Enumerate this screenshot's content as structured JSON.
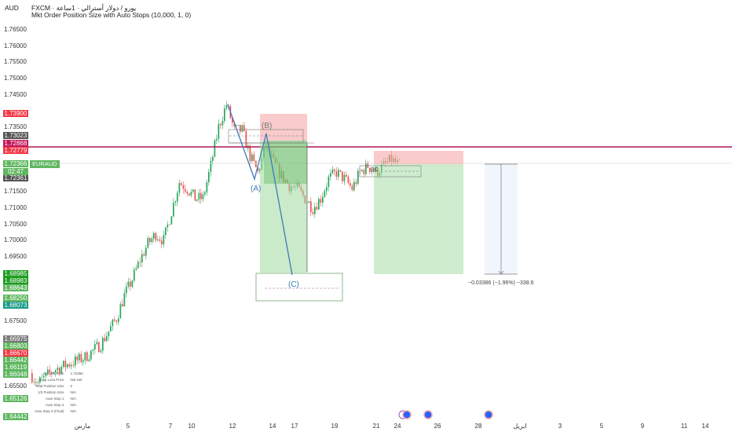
{
  "header": {
    "currency": "AUD",
    "source_line": "FXCM · يورو / دولار أسترالي · 1ساعة",
    "indicator": "Mkt Order Position Size with Auto Stops (10,000, 1, 0)"
  },
  "symbol_tag": "EURAUD",
  "countdown": "02:47",
  "y_ticks": [
    "1.76500",
    "1.76000",
    "1.75500",
    "1.75000",
    "1.74500",
    "1.73500",
    "1.71500",
    "1.71000",
    "1.70500",
    "1.70000",
    "1.69500",
    "1.67500",
    "1.65500"
  ],
  "price_labels": [
    {
      "v": "1.73900",
      "color": "#f23645"
    },
    {
      "v": "1.73023",
      "color": "#555555"
    },
    {
      "v": "1.72868",
      "color": "#c2185b"
    },
    {
      "v": "1.72779",
      "color": "#f23645"
    },
    {
      "v": "1.72366",
      "color": "#5fb760"
    },
    {
      "v": "1.72361",
      "color": "#555555"
    },
    {
      "v": "1.68985",
      "color": "#1e9c1e"
    },
    {
      "v": "1.68983",
      "color": "#1e9c1e"
    },
    {
      "v": "1.68643",
      "color": "#5fb760"
    },
    {
      "v": "1.68250",
      "color": "#5fb760"
    },
    {
      "v": "1.68073",
      "color": "#1a9a8a"
    },
    {
      "v": "1.66975",
      "color": "#7a7a7a"
    },
    {
      "v": "1.66803",
      "color": "#5fb760"
    },
    {
      "v": "1.66670",
      "color": "#f23645"
    },
    {
      "v": "1.66442",
      "color": "#5fb760"
    },
    {
      "v": "1.66119",
      "color": "#5fb760"
    },
    {
      "v": "1.66048",
      "color": "#5fb760"
    },
    {
      "v": "1.65126",
      "color": "#5fb760"
    },
    {
      "v": "1.64442",
      "color": "#5fb760"
    }
  ],
  "x_ticks": [
    "مارس",
    "5",
    "7",
    "10",
    "12",
    "14",
    "17",
    "19",
    "21",
    "24",
    "26",
    "28",
    "ابريل",
    "3",
    "5",
    "9",
    "11",
    "14"
  ],
  "info_table": [
    [
      "Current Price",
      "1.72366"
    ],
    [
      "Stop Loss Price",
      "Not Set"
    ],
    [
      "Total Position Size",
      "0"
    ],
    [
      "1/3 Position Size",
      "N/A"
    ],
    [
      "Auto Stop 1",
      "N/A"
    ],
    [
      "Auto Stop 2",
      "N/A"
    ],
    [
      "Auto Stop 3 (Final)",
      "N/A"
    ]
  ],
  "wave_labels": {
    "a": "(A)",
    "b": "(B)",
    "c": "(C)",
    "bc": "BC"
  },
  "measure_label": "−0.03386 (−1.96%) −338.6",
  "colors": {
    "up": "#26a65b",
    "down": "#ef5350",
    "level_line": "#b0175a"
  },
  "chart_data": {
    "type": "candlestick",
    "close_path": [
      1.659,
      1.656,
      1.658,
      1.66,
      1.661,
      1.662,
      1.663,
      1.664,
      1.666,
      1.668,
      1.672,
      1.676,
      1.683,
      1.688,
      1.694,
      1.699,
      1.702,
      1.7,
      1.709,
      1.718,
      1.716,
      1.713,
      1.713,
      1.723,
      1.735,
      1.742,
      1.734,
      1.734,
      1.726,
      1.721,
      1.729,
      1.724,
      1.72,
      1.717,
      1.716,
      1.713,
      1.71,
      1.713,
      1.719,
      1.721,
      1.719,
      1.716,
      1.721,
      1.723,
      1.721,
      1.723,
      1.725,
      1.723
    ],
    "current_price": 1.72366,
    "level_line": 1.72868
  }
}
